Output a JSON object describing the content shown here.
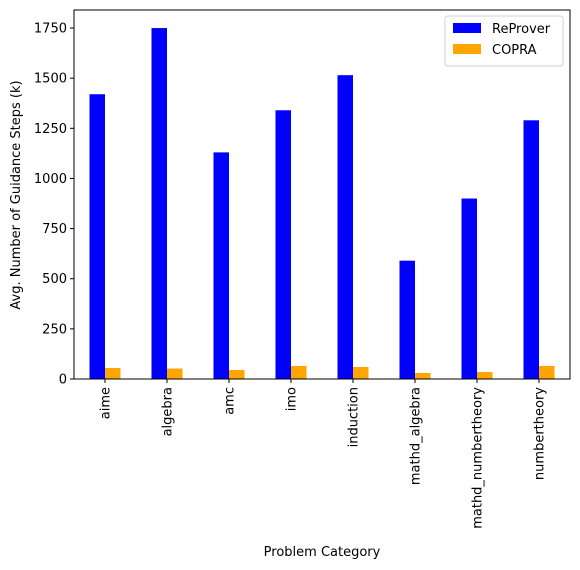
{
  "chart_data": {
    "type": "bar",
    "xlabel": "Problem Category",
    "ylabel": "Avg. Number of Guidance Steps (k)",
    "ylim": [
      0,
      1840
    ],
    "yticks": [
      0,
      250,
      500,
      750,
      1000,
      1250,
      1500,
      1750
    ],
    "categories": [
      "aime",
      "algebra",
      "amc",
      "imo",
      "induction",
      "mathd_algebra",
      "mathd_numbertheory",
      "numbertheory"
    ],
    "series": [
      {
        "name": "ReProver",
        "color": "#0000ff",
        "values": [
          1420,
          1750,
          1130,
          1340,
          1515,
          590,
          900,
          1290
        ]
      },
      {
        "name": "COPRA",
        "color": "#ffa500",
        "values": [
          55,
          52,
          45,
          65,
          60,
          30,
          35,
          65
        ]
      }
    ],
    "legend": {
      "position": "top-right"
    },
    "grid": false
  }
}
